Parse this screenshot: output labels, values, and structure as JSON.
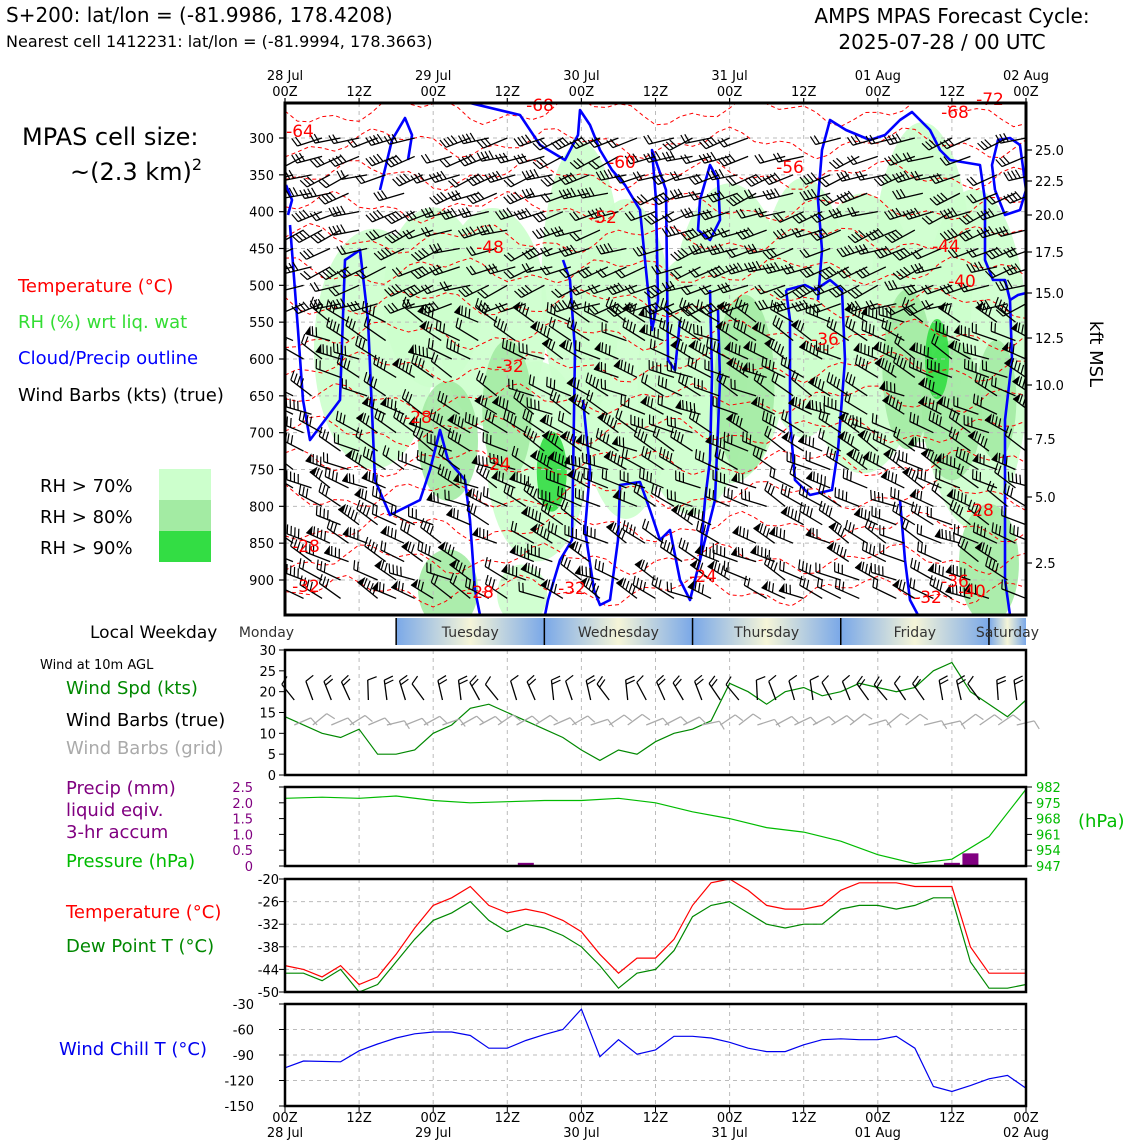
{
  "header": {
    "site_line": "S+200: lat/lon = (-81.9986, 178.4208)",
    "cell_line": "Nearest cell 1412231: lat/lon = (-81.9994, 178.3663)",
    "cycle_line1": "AMPS MPAS Forecast Cycle:",
    "cycle_line2": "2025-07-28 / 00 UTC"
  },
  "sidebar": {
    "cell_size_line1": "MPAS cell size:",
    "cell_size_line2": "~(2.3 km)",
    "cell_size_exp": "2",
    "legend_temperature": "Temperature (°C)",
    "legend_rh": "RH (%) wrt liq. wat",
    "legend_cloud": "Cloud/Precip outline",
    "legend_wind": "Wind Barbs (kts) (true)",
    "rh_70": "RH > 70%",
    "rh_80": "RH > 80%",
    "rh_90": "RH > 90%",
    "local_weekday": "Local Weekday",
    "wind_10m": "Wind at 10m AGL",
    "wind_spd": "Wind Spd (kts)",
    "wind_barbs_true": "Wind Barbs (true)",
    "wind_barbs_grid": "Wind Barbs (grid)",
    "precip1": "Precip (mm)",
    "precip2": "liquid eqiv.",
    "precip3": "3-hr accum",
    "pressure": "Pressure (hPa)",
    "temperature": "Temperature (°C)",
    "dewpoint": "Dew Point T (°C)",
    "windchill": "Wind Chill T (°C)",
    "hpa_label": "(hPa)",
    "kft_label": "kft MSL"
  },
  "colors": {
    "temperature": "#ff0000",
    "rh": "#33dd33",
    "rh70": "#ccffcc",
    "rh80": "#a3eba3",
    "rh90": "#33dd44",
    "cloud": "#0000ff",
    "precip": "#800080",
    "pressure": "#00bb00",
    "dewpoint": "#008800",
    "windchill": "#0000ee",
    "grid_barb": "#aaaaaa",
    "weekday_blue": "#7aa8e8",
    "weekday_cream": "#f5f5d8"
  },
  "chart_data": [
    {
      "type": "line",
      "name": "time-height cross section",
      "x": [
        "28 Jul 00Z",
        "12Z",
        "29 Jul 00Z",
        "12Z",
        "30 Jul 00Z",
        "12Z",
        "31 Jul 00Z",
        "12Z",
        "01 Aug 00Z",
        "12Z",
        "02 Aug 00Z"
      ],
      "top_tick_labels": [
        [
          "28 Jul",
          "00Z"
        ],
        [
          "",
          "12Z"
        ],
        [
          "29 Jul",
          "00Z"
        ],
        [
          "",
          "12Z"
        ],
        [
          "30 Jul",
          "00Z"
        ],
        [
          "",
          "12Z"
        ],
        [
          "31 Jul",
          "00Z"
        ],
        [
          "",
          "12Z"
        ],
        [
          "01 Aug",
          "00Z"
        ],
        [
          "",
          "12Z"
        ],
        [
          "02 Aug",
          "00Z"
        ]
      ],
      "y_pressure_ticks": [
        "300",
        "350",
        "400",
        "450",
        "500",
        "550",
        "600",
        "650",
        "700",
        "750",
        "800",
        "850",
        "900"
      ],
      "y_kft_ticks": [
        "25.0",
        "22.5",
        "20.0",
        "17.5",
        "15.0",
        "12.5",
        "10.0",
        "7.5",
        "5.0",
        "2.5"
      ],
      "ylim_hpa": [
        950,
        280
      ],
      "temperature_labels": [
        "-64",
        "-68",
        "-68",
        "-72",
        "-60",
        "-56",
        "-52",
        "-48",
        "-44",
        "-40",
        "-36",
        "-32",
        "-28",
        "-24",
        "-24",
        "-28",
        "-28",
        "-32",
        "-28",
        "-32",
        "-36",
        "-32",
        "-40"
      ],
      "grid": true
    },
    {
      "type": "line",
      "name": "wind speed",
      "ylim": [
        0,
        30
      ],
      "y_ticks": [
        "0",
        "5",
        "10",
        "15",
        "20",
        "25",
        "30"
      ],
      "x_hours": [
        0,
        6,
        9,
        12,
        15,
        18,
        21,
        24,
        27,
        30,
        33,
        36,
        39,
        42,
        45,
        48,
        51,
        54,
        57,
        60,
        63,
        66,
        69,
        72,
        75,
        78,
        81,
        84,
        87,
        90,
        93,
        96,
        99,
        102,
        105,
        108,
        111,
        114,
        117,
        120
      ],
      "values": [
        14,
        10,
        9,
        11,
        5,
        5,
        6,
        10,
        12,
        16,
        17,
        15,
        13,
        11,
        9,
        6,
        3.5,
        6,
        5,
        8,
        10,
        11,
        13,
        22,
        20,
        17,
        20,
        21,
        19,
        20,
        22,
        21,
        20,
        21,
        25,
        27,
        20,
        17,
        14,
        18
      ]
    },
    {
      "type": "line",
      "name": "pressure and precip",
      "precip_ylim": [
        0,
        2.5
      ],
      "precip_ticks": [
        "0",
        "0.5",
        "1.0",
        "1.5",
        "2.0",
        "2.5"
      ],
      "pressure_ticks": [
        "947",
        "954",
        "961",
        "968",
        "975",
        "982"
      ],
      "pressure_ylim": [
        947,
        982
      ],
      "pressure_x_hours": [
        0,
        6,
        12,
        18,
        24,
        30,
        36,
        42,
        48,
        54,
        60,
        66,
        72,
        78,
        84,
        90,
        96,
        102,
        108,
        114,
        120
      ],
      "pressure_values": [
        977,
        977.5,
        977,
        978,
        976,
        975,
        975.5,
        976,
        976,
        977,
        975,
        971,
        968,
        964,
        962,
        958,
        952,
        948,
        950,
        960,
        981
      ],
      "precip_bars": [
        {
          "hour": 39,
          "value": 0.1
        },
        {
          "hour": 108,
          "value": 0.1
        },
        {
          "hour": 111,
          "value": 0.4
        }
      ]
    },
    {
      "type": "line",
      "name": "temperature and dew point",
      "ylim": [
        -50,
        -20
      ],
      "y_ticks": [
        "-20",
        "-26",
        "-32",
        "-38",
        "-44",
        "-50"
      ],
      "x_hours": [
        0,
        3,
        6,
        9,
        12,
        15,
        18,
        21,
        24,
        27,
        30,
        33,
        36,
        39,
        42,
        45,
        48,
        51,
        54,
        57,
        60,
        63,
        66,
        69,
        72,
        75,
        78,
        81,
        84,
        87,
        90,
        93,
        96,
        99,
        102,
        105,
        108,
        111,
        114,
        117,
        120
      ],
      "temperature": [
        -43,
        -44,
        -46,
        -43,
        -48,
        -46,
        -40,
        -33,
        -27,
        -25,
        -22,
        -27,
        -29,
        -28,
        -29,
        -31,
        -34,
        -40,
        -45,
        -41,
        -41,
        -36,
        -27,
        -21,
        -20,
        -23,
        -27,
        -28,
        -28,
        -27,
        -23,
        -21,
        -21,
        -21,
        -22,
        -22,
        -22,
        -38,
        -45,
        -45,
        -45
      ],
      "dew_point": [
        -45,
        -45,
        -47,
        -44,
        -50,
        -48,
        -42,
        -36,
        -31,
        -29,
        -26,
        -31,
        -34,
        -32,
        -33,
        -35,
        -38,
        -43,
        -49,
        -45,
        -44,
        -39,
        -30,
        -27,
        -26,
        -29,
        -32,
        -33,
        -32,
        -32,
        -28,
        -27,
        -27,
        -28,
        -27,
        -25,
        -25,
        -42,
        -49,
        -49,
        -48
      ]
    },
    {
      "type": "line",
      "name": "wind chill",
      "ylim": [
        -150,
        -30
      ],
      "y_ticks": [
        "-30",
        "-60",
        "-90",
        "-120",
        "-150"
      ],
      "x_hours": [
        0,
        3,
        9,
        12,
        15,
        18,
        21,
        24,
        27,
        30,
        33,
        36,
        39,
        42,
        45,
        48,
        51,
        54,
        57,
        60,
        63,
        66,
        69,
        72,
        75,
        78,
        81,
        84,
        87,
        90,
        93,
        96,
        99,
        102,
        105,
        108,
        111,
        114,
        117,
        120
      ],
      "values": [
        -105,
        -97,
        -98,
        -85,
        -77,
        -70,
        -65,
        -63,
        -63,
        -67,
        -82,
        -82,
        -73,
        -66,
        -60,
        -36,
        -92,
        -72,
        -89,
        -84,
        -68,
        -68,
        -70,
        -75,
        -82,
        -86,
        -86,
        -78,
        -72,
        -71,
        -72,
        -72,
        -68,
        -82,
        -127,
        -133,
        -126,
        -118,
        -114,
        -129
      ]
    }
  ],
  "x_bottom": {
    "hours": [
      "00Z",
      "12Z",
      "00Z",
      "12Z",
      "00Z",
      "12Z",
      "00Z",
      "12Z",
      "00Z",
      "12Z",
      "00Z"
    ],
    "dates": [
      "28 Jul",
      "",
      "29 Jul",
      "",
      "30 Jul",
      "",
      "31 Jul",
      "",
      "01 Aug",
      "",
      "02 Aug"
    ]
  },
  "weekdays": [
    "Monday",
    "Tuesday",
    "Wednesday",
    "Thursday",
    "Friday",
    "Saturday"
  ]
}
